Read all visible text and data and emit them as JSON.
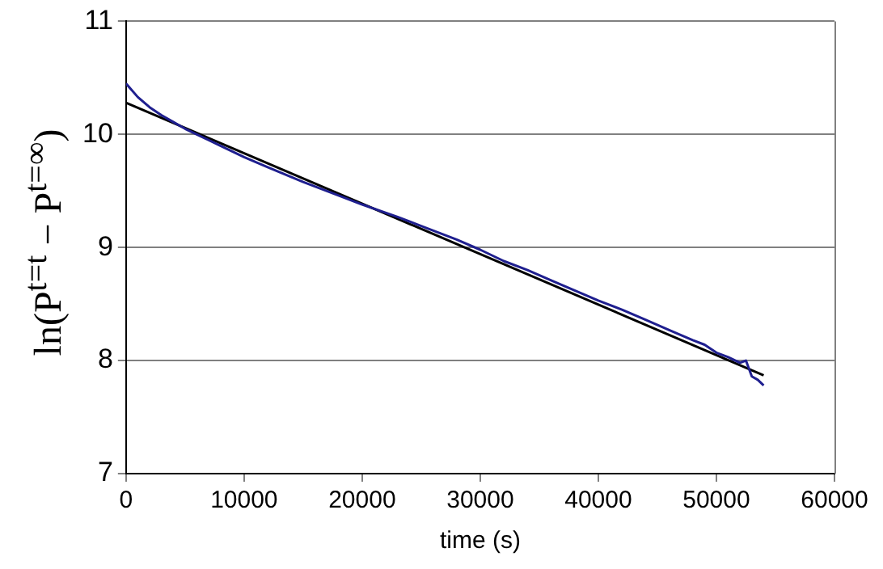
{
  "chart_data": {
    "type": "line",
    "xlabel": "time (s)",
    "ylabel": "ln(P$^{t=t}$ − P$^{t=∞}$)",
    "xlim": [
      0,
      60000
    ],
    "xticks": [
      0,
      10000,
      20000,
      30000,
      40000,
      50000,
      60000
    ],
    "ylim": [
      7,
      11
    ],
    "yticks": [
      7,
      8,
      9,
      10,
      11
    ],
    "grid": "y",
    "legend": false,
    "marker": "none",
    "series": [
      {
        "color": "#1f1f8f",
        "x": [
          0,
          1000,
          2000,
          3000,
          4000,
          5000,
          6000,
          8000,
          10000,
          12000,
          15000,
          18000,
          20000,
          23000,
          25000,
          28000,
          30000,
          32000,
          34000,
          36000,
          38000,
          40000,
          42000,
          44000,
          46000,
          48000,
          49000,
          50000,
          51000,
          52000,
          52500,
          53000,
          53500,
          54000
        ],
        "values": [
          10.45,
          10.33,
          10.24,
          10.17,
          10.11,
          10.05,
          10.0,
          9.9,
          9.8,
          9.71,
          9.58,
          9.46,
          9.38,
          9.27,
          9.19,
          9.07,
          8.98,
          8.88,
          8.8,
          8.71,
          8.62,
          8.53,
          8.45,
          8.36,
          8.27,
          8.18,
          8.14,
          8.07,
          8.03,
          7.98,
          8.0,
          7.86,
          7.83,
          7.78
        ]
      },
      {
        "color": "#000000",
        "x": [
          0,
          54000
        ],
        "values": [
          10.28,
          7.87
        ]
      }
    ]
  }
}
